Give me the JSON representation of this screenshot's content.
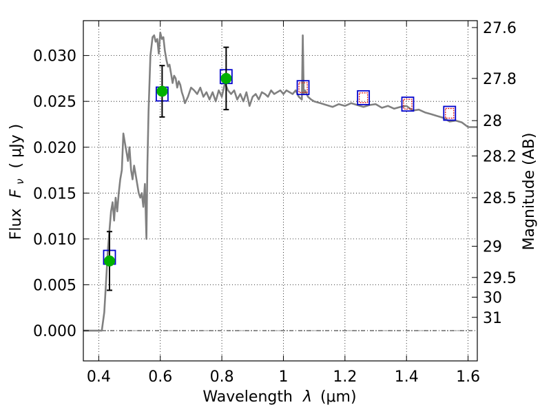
{
  "chart_data": {
    "type": "scatter",
    "xlabel_text": "Wavelength",
    "xlabel_symbol": "λ",
    "xlabel_unit": "(μm)",
    "ylabel_text": "Flux",
    "ylabel_symbol": "F",
    "ylabel_subscript": "ν",
    "ylabel_unit": "( μJy )",
    "y2label": "Magnitude (AB)",
    "xlim": [
      0.35,
      1.63
    ],
    "ylim": [
      -0.0033,
      0.0338
    ],
    "x_ticks": [
      {
        "value": 0.4,
        "label": "0.4"
      },
      {
        "value": 0.6,
        "label": "0.6"
      },
      {
        "value": 0.8,
        "label": "0.8"
      },
      {
        "value": 1.0,
        "label": "1"
      },
      {
        "value": 1.2,
        "label": "1.2"
      },
      {
        "value": 1.4,
        "label": "1.4"
      },
      {
        "value": 1.6,
        "label": "1.6"
      }
    ],
    "y_ticks": [
      {
        "value": 0.0,
        "label": "0.000"
      },
      {
        "value": 0.005,
        "label": "0.005"
      },
      {
        "value": 0.01,
        "label": "0.010"
      },
      {
        "value": 0.015,
        "label": "0.015"
      },
      {
        "value": 0.02,
        "label": "0.020"
      },
      {
        "value": 0.025,
        "label": "0.025"
      },
      {
        "value": 0.03,
        "label": "0.030"
      }
    ],
    "mag_ticks": [
      {
        "flux": 0.03305,
        "label": "27.6"
      },
      {
        "flux": 0.0275,
        "label": "27.8"
      },
      {
        "flux": 0.0229,
        "label": "28"
      },
      {
        "flux": 0.01905,
        "label": "28.2"
      },
      {
        "flux": 0.0145,
        "label": "28.5"
      },
      {
        "flux": 0.0092,
        "label": "29"
      },
      {
        "flux": 0.0058,
        "label": "29.5"
      },
      {
        "flux": 0.00365,
        "label": "30"
      },
      {
        "flux": 0.00145,
        "label": "31"
      }
    ],
    "grid": true,
    "sed_model": {
      "color": "#808080",
      "x": [
        0.35,
        0.41,
        0.418,
        0.425,
        0.43,
        0.435,
        0.44,
        0.445,
        0.45,
        0.455,
        0.46,
        0.465,
        0.47,
        0.475,
        0.48,
        0.485,
        0.49,
        0.495,
        0.5,
        0.505,
        0.51,
        0.515,
        0.52,
        0.525,
        0.53,
        0.535,
        0.54,
        0.545,
        0.55,
        0.555,
        0.558,
        0.562,
        0.568,
        0.575,
        0.58,
        0.585,
        0.59,
        0.595,
        0.6,
        0.605,
        0.61,
        0.615,
        0.62,
        0.625,
        0.63,
        0.635,
        0.64,
        0.645,
        0.65,
        0.655,
        0.66,
        0.665,
        0.67,
        0.675,
        0.68,
        0.69,
        0.7,
        0.71,
        0.72,
        0.73,
        0.74,
        0.75,
        0.76,
        0.77,
        0.78,
        0.79,
        0.8,
        0.81,
        0.82,
        0.83,
        0.84,
        0.85,
        0.86,
        0.87,
        0.88,
        0.89,
        0.9,
        0.91,
        0.92,
        0.93,
        0.94,
        0.95,
        0.96,
        0.97,
        0.98,
        0.99,
        1.0,
        1.01,
        1.02,
        1.03,
        1.04,
        1.05,
        1.06,
        1.063,
        1.066,
        1.07,
        1.08,
        1.09,
        1.1,
        1.12,
        1.14,
        1.16,
        1.18,
        1.2,
        1.22,
        1.24,
        1.26,
        1.28,
        1.3,
        1.32,
        1.34,
        1.36,
        1.38,
        1.4,
        1.42,
        1.44,
        1.46,
        1.48,
        1.5,
        1.52,
        1.54,
        1.56,
        1.58,
        1.6,
        1.63
      ],
      "y": [
        0.0,
        0.0,
        0.002,
        0.006,
        0.009,
        0.011,
        0.013,
        0.014,
        0.012,
        0.0145,
        0.013,
        0.015,
        0.0165,
        0.0175,
        0.0215,
        0.0205,
        0.0195,
        0.0185,
        0.02,
        0.0175,
        0.0165,
        0.018,
        0.017,
        0.016,
        0.015,
        0.0145,
        0.015,
        0.0135,
        0.016,
        0.01,
        0.018,
        0.024,
        0.03,
        0.032,
        0.0322,
        0.0315,
        0.0318,
        0.0302,
        0.0325,
        0.0318,
        0.032,
        0.0305,
        0.0295,
        0.0288,
        0.029,
        0.028,
        0.027,
        0.0278,
        0.0275,
        0.0265,
        0.0272,
        0.0268,
        0.026,
        0.0255,
        0.0248,
        0.0255,
        0.0265,
        0.0262,
        0.0258,
        0.0265,
        0.0255,
        0.026,
        0.0252,
        0.026,
        0.025,
        0.0262,
        0.0255,
        0.027,
        0.0262,
        0.0258,
        0.0262,
        0.0252,
        0.0258,
        0.025,
        0.026,
        0.0245,
        0.0255,
        0.0258,
        0.0252,
        0.026,
        0.0258,
        0.0255,
        0.0262,
        0.0258,
        0.026,
        0.0262,
        0.0258,
        0.0262,
        0.026,
        0.0258,
        0.0262,
        0.0255,
        0.0252,
        0.0322,
        0.0258,
        0.0262,
        0.0255,
        0.0252,
        0.025,
        0.0248,
        0.0246,
        0.0244,
        0.0247,
        0.0245,
        0.0248,
        0.0246,
        0.0244,
        0.0246,
        0.0247,
        0.0243,
        0.0245,
        0.0242,
        0.0244,
        0.0245,
        0.024,
        0.0241,
        0.0238,
        0.0236,
        0.0234,
        0.0232,
        0.0228,
        0.0229,
        0.0227,
        0.0222,
        0.0222
      ]
    },
    "sed_flux_squares": [
      {
        "x": 0.435,
        "y": 0.008
      },
      {
        "x": 0.606,
        "y": 0.0258
      },
      {
        "x": 0.814,
        "y": 0.0277
      },
      {
        "x": 1.064,
        "y": 0.0265
      },
      {
        "x": 1.26,
        "y": 0.0254
      },
      {
        "x": 1.404,
        "y": 0.0247
      },
      {
        "x": 1.54,
        "y": 0.0237
      }
    ],
    "observed_detections": [
      {
        "x": 0.435,
        "y": 0.0076,
        "yerr": 0.0032
      },
      {
        "x": 0.606,
        "y": 0.0261,
        "yerr": 0.0028
      },
      {
        "x": 0.814,
        "y": 0.0275,
        "yerr": 0.0034
      }
    ],
    "nondetections": [
      {
        "x": 1.064,
        "y": 0.0265
      },
      {
        "x": 1.26,
        "y": 0.0254
      },
      {
        "x": 1.404,
        "y": 0.0247
      },
      {
        "x": 1.54,
        "y": 0.0237
      }
    ],
    "colors": {
      "model_square": "#0000cc",
      "detection": "#00b000",
      "nondetection": "#dd0000",
      "errorbar": "#000000"
    }
  }
}
